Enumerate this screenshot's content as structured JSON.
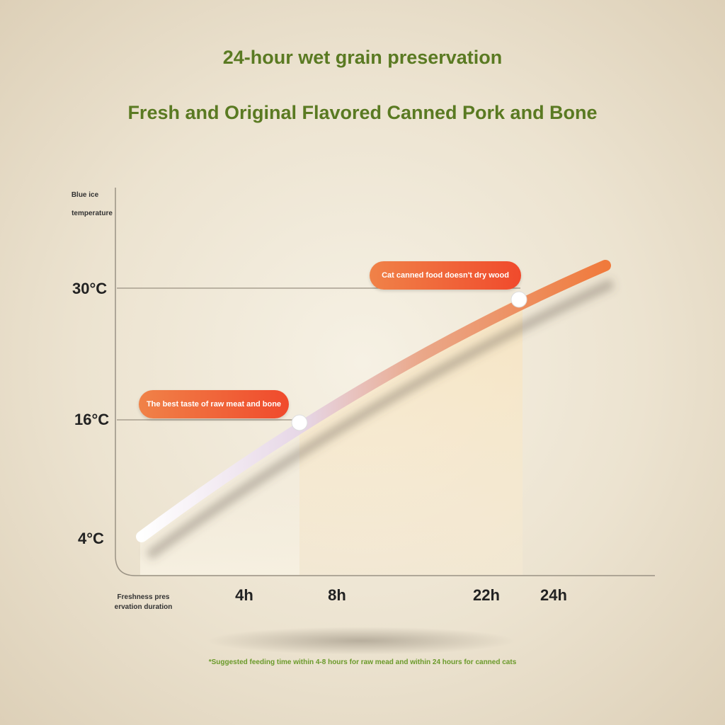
{
  "title": "24-hour wet grain preservation",
  "subtitle": "Fresh and Original Flavored Canned Pork and Bone",
  "footnote": "*Suggested feeding time within 4-8 hours for raw mead and within 24 hours for canned cats",
  "colors": {
    "title": "#5a7a22",
    "accent": "#f0602f",
    "footnote": "#6a9a2a"
  },
  "chart_data": {
    "type": "line",
    "ylabel": [
      "Blue ice",
      "temperature"
    ],
    "xlabel": [
      "Freshness pres",
      "ervation duration"
    ],
    "y_ticks": [
      "4°C",
      "16°C",
      "30°C"
    ],
    "x_ticks": [
      "4h",
      "8h",
      "22h",
      "24h"
    ],
    "annotations": [
      {
        "label": "The best taste of raw meat and bone",
        "y": "16°C"
      },
      {
        "label": "Cat canned food doesn't dry wood",
        "y": "30°C"
      }
    ],
    "grid": false
  }
}
